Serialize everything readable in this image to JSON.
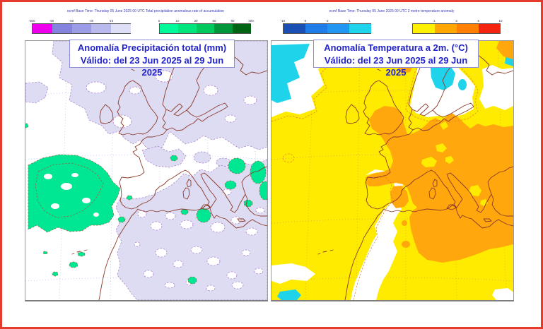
{
  "frame": {
    "border_color": "#e43b2c"
  },
  "panels": [
    {
      "name": "precipitation",
      "header": "ecmf  Base Time: Thursday 05 June 2025 00 UTC Total precipitation anomalous rate of accumulation",
      "title_line1": "Anomalía Precipitación total (mm)",
      "title_line2": "Válido: del 23 Jun 2025 al 29 Jun 2025",
      "title_color": "#2323cc",
      "colorbar_negative": {
        "colors": [
          "#ee00ee",
          "#8484de",
          "#9c9ce6",
          "#b9b9ee",
          "#dedef6"
        ],
        "labels": [
          "-300",
          "-90",
          "-60",
          "-30",
          "-10"
        ],
        "label_offset": 0
      },
      "colorbar_positive": {
        "colors": [
          "#00fa9a",
          "#00e67d",
          "#00c95e",
          "#00973a",
          "#006414"
        ],
        "labels": [
          "0",
          "10",
          "30",
          "60",
          "90",
          "200"
        ],
        "label_offset": 0
      },
      "map_colors": {
        "neutral_white": "#ffffff",
        "dry_lavender": "#dddcf3",
        "wet_green": "#00e793",
        "coastline": "#8b3a2a",
        "dashed_contour_dry": "#a678c8",
        "dashed_contour_wet": "#9a5a3c",
        "graticule": "#98a8d0"
      }
    },
    {
      "name": "temperature",
      "header": "ecmf  Base Time: Thursday 05 June 2025 00 UTC 2 metre temperature anomaly",
      "title_line1": "Anomalía Temperatura a 2m. (°C)",
      "title_line2": "Válido: del 23 Jun 2025 al 29 Jun 2025",
      "title_color": "#2323cc",
      "colorbar_cold": {
        "colors": [
          "#1a4fb4",
          "#1f7ce8",
          "#2196f2",
          "#1fd4ea"
        ],
        "labels": [
          "-10",
          "-5",
          "-3",
          "-1"
        ],
        "label_offset": 0
      },
      "colorbar_warm": {
        "colors": [
          "#ffef00",
          "#ffa600",
          "#ff8000",
          "#f42410"
        ],
        "labels": [
          "1",
          "3",
          "5",
          "10"
        ],
        "label_offset": 1
      },
      "map_colors": {
        "warm_yellow": "#ffeb00",
        "warm_orange": "#ffa70d",
        "cold_cyan": "#1fd4ea",
        "neutral_white": "#ffffff",
        "coastline": "#8b3a2a",
        "dashed_contour": "#e08020",
        "graticule": "#c09a40"
      }
    }
  ]
}
